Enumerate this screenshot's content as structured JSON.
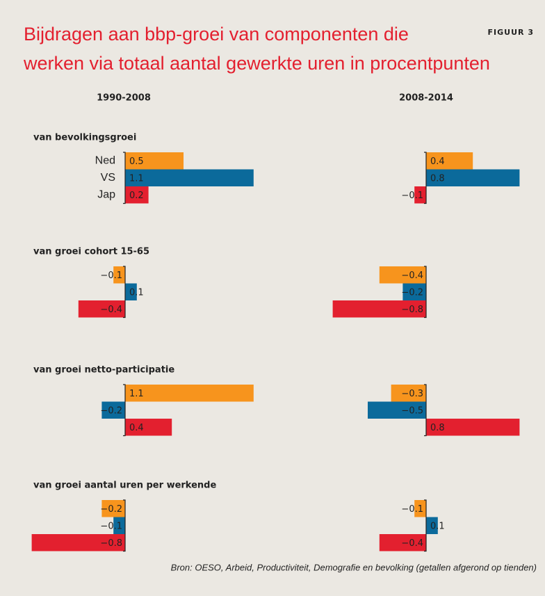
{
  "chart_data": {
    "type": "bar",
    "title": [
      "Bijdragen aan bbp-groei van componenten die",
      "werken via totaal aantal gewerkte uren in procentpunten"
    ],
    "figure_label": "FIGUUR 3",
    "columns": [
      "1990-2008",
      "2008-2014"
    ],
    "categories": [
      "Ned",
      "VS",
      "Jap"
    ],
    "colors": [
      "#f7941d",
      "#0b6a9b",
      "#e3202f"
    ],
    "rows": [
      {
        "title": "van bevolkingsgroei",
        "panels": [
          {
            "values": [
              0.5,
              1.1,
              0.2
            ],
            "value_labels": [
              "0.5",
              "1.1",
              "0.2"
            ]
          },
          {
            "values": [
              0.4,
              0.8,
              -0.1
            ],
            "value_labels": [
              "0.4",
              "0.8",
              "−0.1"
            ]
          }
        ]
      },
      {
        "title": "van groei cohort 15-65",
        "panels": [
          {
            "values": [
              -0.1,
              0.1,
              -0.4
            ],
            "value_labels": [
              "−0.1",
              "0.1",
              "−0.4"
            ]
          },
          {
            "values": [
              -0.4,
              -0.2,
              -0.8
            ],
            "value_labels": [
              "−0.4",
              "−0.2",
              "−0.8"
            ]
          }
        ]
      },
      {
        "title": "van groei netto-participatie",
        "panels": [
          {
            "values": [
              1.1,
              -0.2,
              0.4
            ],
            "value_labels": [
              "1.1",
              "−0.2",
              "0.4"
            ]
          },
          {
            "values": [
              -0.3,
              -0.5,
              0.8
            ],
            "value_labels": [
              "−0.3",
              "−0.5",
              "0.8"
            ]
          }
        ]
      },
      {
        "title": "van groei aantal uren per werkende",
        "panels": [
          {
            "values": [
              -0.2,
              -0.1,
              -0.8
            ],
            "value_labels": [
              "−0.2",
              "−0.1",
              "−0.8"
            ]
          },
          {
            "values": [
              -0.1,
              0.1,
              -0.4
            ],
            "value_labels": [
              "−0.1",
              "0.1",
              "−0.4"
            ]
          }
        ]
      }
    ],
    "source": "Bron: OESO, Arbeid, Productiviteit, Demografie en bevolking (getallen afgerond op tienden)"
  }
}
